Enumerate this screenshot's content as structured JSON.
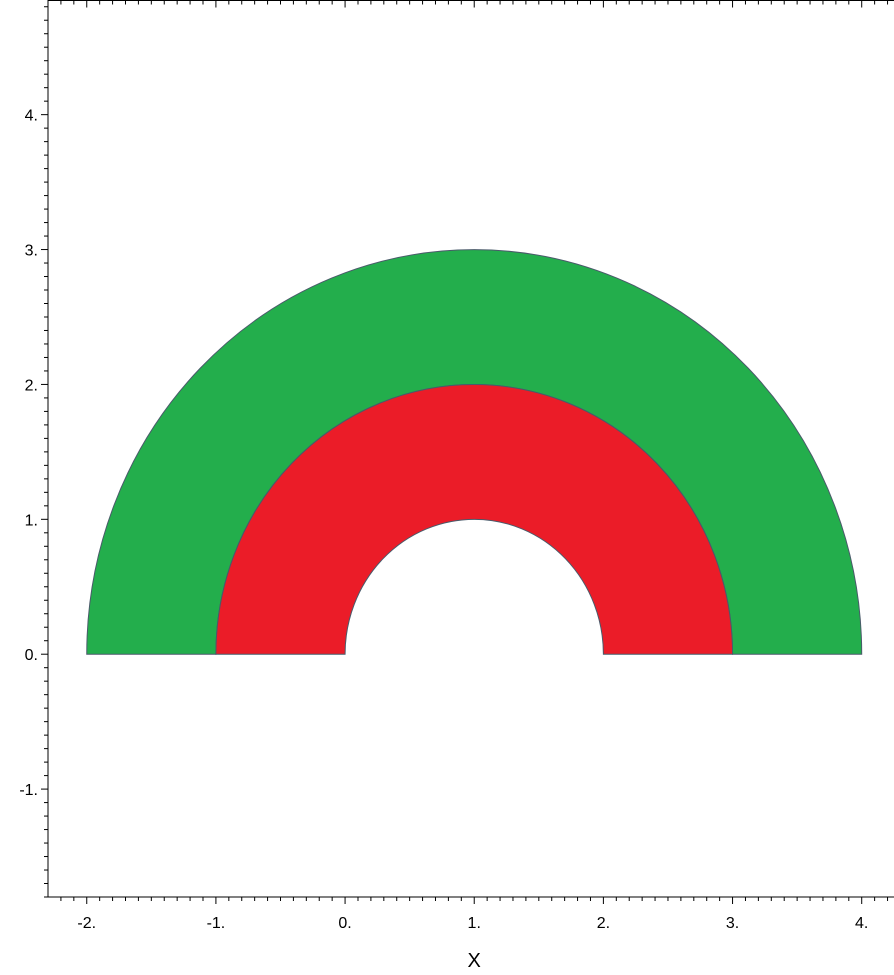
{
  "chart_data": {
    "type": "area",
    "title": "",
    "xlabel": "X",
    "ylabel": "",
    "xlim": [
      -2.3,
      4.25
    ],
    "ylim": [
      -1.8,
      4.85
    ],
    "x_ticks": [
      -2,
      -1,
      0,
      1,
      2,
      3,
      4
    ],
    "x_tick_labels": [
      "-2.",
      "-1.",
      "0.",
      "1.",
      "2.",
      "3.",
      "4."
    ],
    "y_ticks": [
      -1,
      0,
      1,
      2,
      3,
      4
    ],
    "y_tick_labels": [
      "-1.",
      "0.",
      "1.",
      "2.",
      "3.",
      "4."
    ],
    "grid": false,
    "series": [
      {
        "shape": "half-annulus",
        "center": [
          1,
          0
        ],
        "inner_radius": 2,
        "outer_radius": 3,
        "color": "#23ae4c"
      },
      {
        "shape": "half-annulus",
        "center": [
          1,
          0
        ],
        "inner_radius": 1,
        "outer_radius": 2,
        "color": "#eb1c28"
      }
    ]
  }
}
